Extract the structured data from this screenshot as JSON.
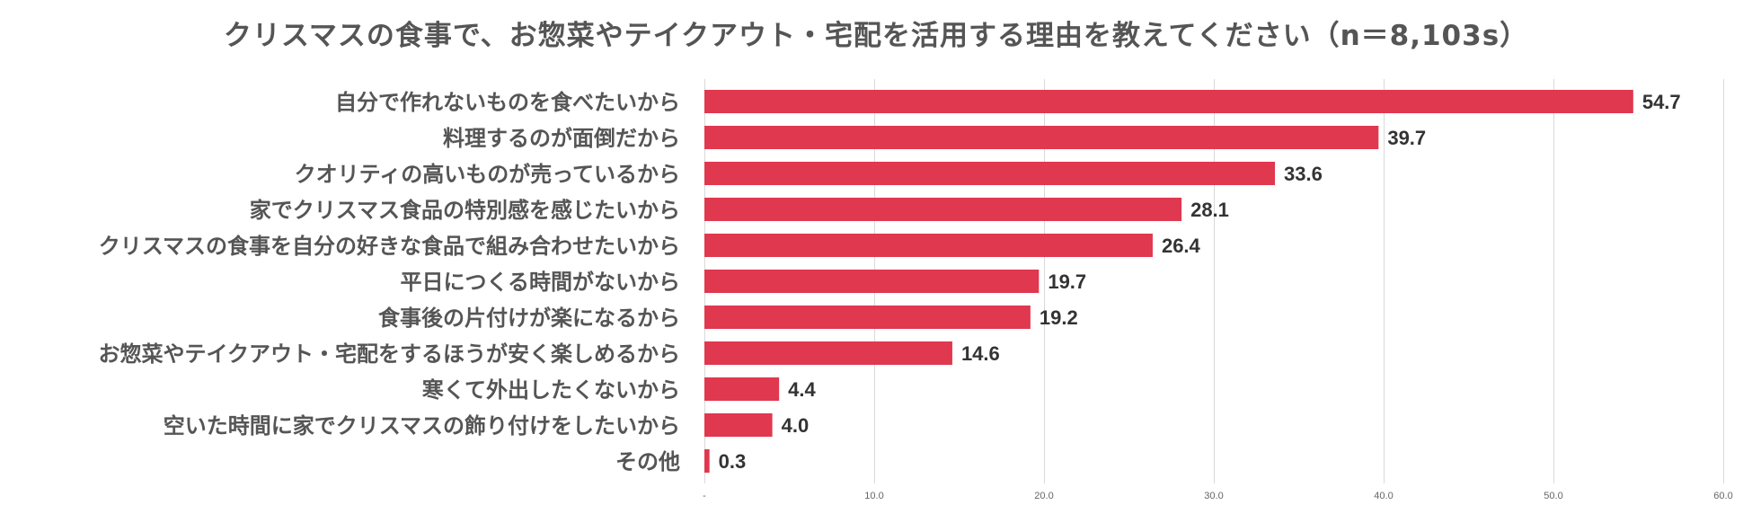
{
  "chart_data": {
    "type": "bar",
    "orientation": "horizontal",
    "title": "クリスマスの食事で、お惣菜やテイクアウト・宅配を活用する理由を教えてください（n＝8,103s）",
    "categories": [
      "自分で作れないものを食べたいから",
      "料理するのが面倒だから",
      "クオリティの高いものが売っているから",
      "家でクリスマス食品の特別感を感じたいから",
      "クリスマスの食事を自分の好きな食品で組み合わせたいから",
      "平日につくる時間がないから",
      "食事後の片付けが楽になるから",
      "お惣菜やテイクアウト・宅配をするほうが安く楽しめるから",
      "寒くて外出したくないから",
      "空いた時間に家でクリスマスの飾り付けをしたいから",
      "その他"
    ],
    "values": [
      54.7,
      39.7,
      33.6,
      28.1,
      26.4,
      19.7,
      19.2,
      14.6,
      4.4,
      4.0,
      0.3
    ],
    "value_labels": [
      "54.7",
      "39.7",
      "33.6",
      "28.1",
      "26.4",
      "19.7",
      "19.2",
      "14.6",
      "4.4",
      "4.0",
      "0.3"
    ],
    "xlim": [
      0,
      60
    ],
    "x_ticks": [
      0,
      10,
      20,
      30,
      40,
      50,
      60
    ],
    "x_tick_labels": [
      "-",
      "10.0",
      "20.0",
      "30.0",
      "40.0",
      "50.0",
      "60.0"
    ],
    "xlabel": "",
    "ylabel": "",
    "grid": true,
    "legend": "none",
    "bar_color": "#e0384f"
  }
}
